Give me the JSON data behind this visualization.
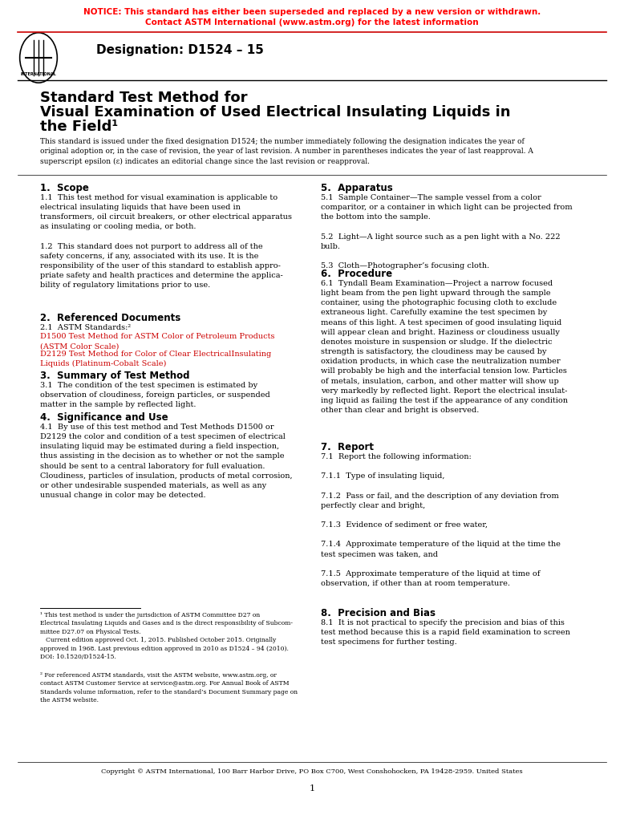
{
  "notice_line1": "NOTICE: This standard has either been superseded and replaced by a new version or withdrawn.",
  "notice_line2": "Contact ASTM International (www.astm.org) for the latest information",
  "notice_color": "#FF0000",
  "designation": "Designation: D1524 – 15",
  "title_line1": "Standard Test Method for",
  "title_line2": "Visual Examination of Used Electrical Insulating Liquids in",
  "title_line3": "the Field¹",
  "subtitle": "This standard is issued under the fixed designation D1524; the number immediately following the designation indicates the year of\noriginal adoption or, in the case of revision, the year of last revision. A number in parentheses indicates the year of last reapproval. A\nsuperscript epsilon (ε) indicates an editorial change since the last revision or reapproval.",
  "section1_head": "1.  Scope",
  "section2_head": "2.  Referenced Documents",
  "section2_body": "2.1  ASTM Standards:²",
  "ref_d1500": "D1500 Test Method for ASTM Color of Petroleum Products\n(ASTM Color Scale)",
  "ref_d2129": "D2129 Test Method for Color of Clear ElectricalInsulating\nLiquids (Platinum-Cobalt Scale)",
  "link_color": "#CC0000",
  "section3_head": "3.  Summary of Test Method",
  "section4_head": "4.  Significance and Use",
  "section5_head": "5.  Apparatus",
  "section6_head": "6.  Procedure",
  "section7_head": "7.  Report",
  "section8_head": "8.  Precision and Bias",
  "copyright": "Copyright © ASTM International, 100 Barr Harbor Drive, PO Box C700, West Conshohocken, PA 19428-2959. United States",
  "page_num": "1",
  "bg_color": "#FFFFFF",
  "text_color": "#000000",
  "notice_color_hex": "#FF0000",
  "header_line_color": "#CC0000"
}
